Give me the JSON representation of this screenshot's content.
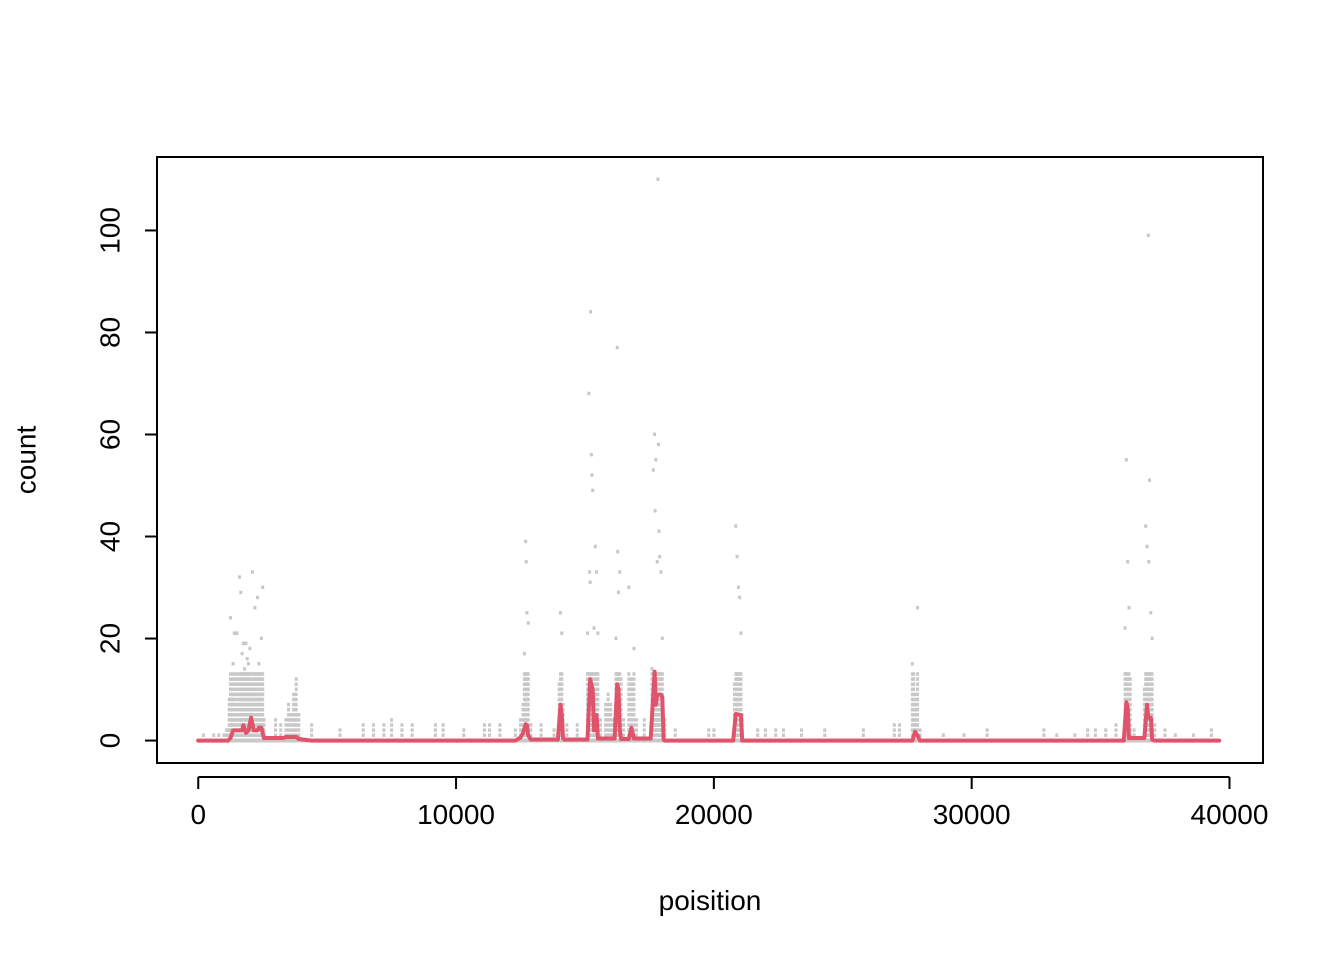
{
  "chart_data": {
    "type": "scatter",
    "xlabel": "poisition",
    "ylabel": "count",
    "xlim": [
      -1600,
      41300
    ],
    "ylim": [
      -4.4,
      114.4
    ],
    "x_ticks": [
      0,
      10000,
      20000,
      30000,
      40000
    ],
    "x_tick_labels": [
      "0",
      "10000",
      "20000",
      "30000",
      "40000"
    ],
    "y_ticks": [
      0,
      20,
      40,
      60,
      80,
      100
    ],
    "y_tick_labels": [
      "0",
      "20",
      "40",
      "60",
      "80",
      "100"
    ],
    "grid": false,
    "colors": {
      "points": "#c8c8c8",
      "line": "#df536b",
      "axes": "#000000"
    },
    "points_x_step": 100,
    "points": [
      [
        200,
        1
      ],
      [
        600,
        1
      ],
      [
        800,
        1
      ],
      [
        1000,
        1
      ],
      [
        1100,
        2
      ],
      [
        1200,
        8
      ],
      [
        1250,
        24
      ],
      [
        1300,
        10
      ],
      [
        1350,
        15
      ],
      [
        1400,
        21
      ],
      [
        1500,
        21
      ],
      [
        1600,
        32
      ],
      [
        1650,
        29
      ],
      [
        1700,
        17
      ],
      [
        1750,
        19
      ],
      [
        1800,
        14
      ],
      [
        1850,
        19
      ],
      [
        1900,
        16
      ],
      [
        1950,
        15
      ],
      [
        2000,
        18
      ],
      [
        2050,
        11
      ],
      [
        2100,
        33
      ],
      [
        2150,
        13
      ],
      [
        2200,
        26
      ],
      [
        2250,
        13
      ],
      [
        2300,
        28
      ],
      [
        2350,
        15
      ],
      [
        2400,
        13
      ],
      [
        2450,
        20
      ],
      [
        2500,
        30
      ],
      [
        2550,
        4
      ],
      [
        3000,
        4
      ],
      [
        3200,
        3
      ],
      [
        3400,
        4
      ],
      [
        3500,
        7
      ],
      [
        3600,
        5
      ],
      [
        3700,
        9
      ],
      [
        3750,
        7
      ],
      [
        3800,
        12
      ],
      [
        3900,
        5
      ],
      [
        4400,
        3
      ],
      [
        5500,
        2
      ],
      [
        6400,
        3
      ],
      [
        6800,
        3
      ],
      [
        7200,
        3
      ],
      [
        7500,
        4
      ],
      [
        7900,
        3
      ],
      [
        8300,
        3
      ],
      [
        9200,
        3
      ],
      [
        9500,
        3
      ],
      [
        10300,
        2
      ],
      [
        11100,
        3
      ],
      [
        11300,
        3
      ],
      [
        11700,
        3
      ],
      [
        12300,
        2
      ],
      [
        12500,
        4
      ],
      [
        12600,
        7
      ],
      [
        12650,
        17
      ],
      [
        12700,
        39
      ],
      [
        12720,
        35
      ],
      [
        12750,
        25
      ],
      [
        12800,
        23
      ],
      [
        12900,
        3
      ],
      [
        13300,
        3
      ],
      [
        13800,
        2
      ],
      [
        14000,
        11
      ],
      [
        14050,
        25
      ],
      [
        14100,
        21
      ],
      [
        14150,
        7
      ],
      [
        14300,
        3
      ],
      [
        14700,
        3
      ],
      [
        15100,
        21
      ],
      [
        15150,
        68
      ],
      [
        15180,
        33
      ],
      [
        15200,
        31
      ],
      [
        15220,
        84
      ],
      [
        15250,
        56
      ],
      [
        15270,
        52
      ],
      [
        15300,
        49
      ],
      [
        15350,
        22
      ],
      [
        15400,
        38
      ],
      [
        15450,
        33
      ],
      [
        15500,
        21
      ],
      [
        15600,
        4
      ],
      [
        15800,
        7
      ],
      [
        15900,
        9
      ],
      [
        16000,
        7
      ],
      [
        16100,
        4
      ],
      [
        16200,
        20
      ],
      [
        16250,
        77
      ],
      [
        16270,
        37
      ],
      [
        16300,
        29
      ],
      [
        16350,
        33
      ],
      [
        16400,
        12
      ],
      [
        16500,
        4
      ],
      [
        16700,
        30
      ],
      [
        16800,
        12
      ],
      [
        16900,
        18
      ],
      [
        17000,
        4
      ],
      [
        17300,
        4
      ],
      [
        17600,
        14
      ],
      [
        17650,
        53
      ],
      [
        17700,
        60
      ],
      [
        17720,
        45
      ],
      [
        17750,
        55
      ],
      [
        17800,
        35
      ],
      [
        17830,
        110
      ],
      [
        17850,
        58
      ],
      [
        17870,
        41
      ],
      [
        17900,
        36
      ],
      [
        17950,
        33
      ],
      [
        18000,
        20
      ],
      [
        18100,
        4
      ],
      [
        18500,
        2
      ],
      [
        19800,
        2
      ],
      [
        20000,
        2
      ],
      [
        20800,
        11
      ],
      [
        20850,
        42
      ],
      [
        20900,
        36
      ],
      [
        20950,
        30
      ],
      [
        21000,
        28
      ],
      [
        21050,
        21
      ],
      [
        21100,
        5
      ],
      [
        21700,
        2
      ],
      [
        22000,
        2
      ],
      [
        22400,
        2
      ],
      [
        22700,
        2
      ],
      [
        23400,
        2
      ],
      [
        24300,
        2
      ],
      [
        25800,
        2
      ],
      [
        27000,
        3
      ],
      [
        27200,
        3
      ],
      [
        27700,
        15
      ],
      [
        27750,
        13
      ],
      [
        27800,
        7
      ],
      [
        27850,
        9
      ],
      [
        27900,
        26
      ],
      [
        28000,
        2
      ],
      [
        28900,
        1
      ],
      [
        29700,
        1
      ],
      [
        30600,
        2
      ],
      [
        32800,
        2
      ],
      [
        33300,
        1
      ],
      [
        34000,
        1
      ],
      [
        34500,
        2
      ],
      [
        34800,
        2
      ],
      [
        35200,
        2
      ],
      [
        35600,
        3
      ],
      [
        35950,
        22
      ],
      [
        36000,
        55
      ],
      [
        36050,
        35
      ],
      [
        36100,
        26
      ],
      [
        36150,
        12
      ],
      [
        36300,
        2
      ],
      [
        36700,
        10
      ],
      [
        36750,
        42
      ],
      [
        36800,
        38
      ],
      [
        36850,
        99
      ],
      [
        36870,
        35
      ],
      [
        36900,
        51
      ],
      [
        36950,
        25
      ],
      [
        37000,
        20
      ],
      [
        37100,
        3
      ],
      [
        37500,
        2
      ],
      [
        37900,
        1
      ],
      [
        38600,
        1
      ],
      [
        39300,
        2
      ]
    ],
    "series": [
      {
        "values": [
          [
            0,
            0
          ],
          [
            1150,
            0
          ],
          [
            1250,
            0.5
          ],
          [
            1350,
            2
          ],
          [
            1700,
            2
          ],
          [
            1750,
            3
          ],
          [
            1850,
            1.5
          ],
          [
            1950,
            2
          ],
          [
            2050,
            4.5
          ],
          [
            2150,
            2
          ],
          [
            2300,
            2
          ],
          [
            2350,
            2.5
          ],
          [
            2450,
            2.5
          ],
          [
            2550,
            0.5
          ],
          [
            3300,
            0.5
          ],
          [
            3400,
            0.7
          ],
          [
            3800,
            0.7
          ],
          [
            3900,
            0.3
          ],
          [
            4400,
            0
          ],
          [
            12300,
            0
          ],
          [
            12500,
            0.6
          ],
          [
            12600,
            1.5
          ],
          [
            12700,
            3.2
          ],
          [
            12750,
            3
          ],
          [
            12800,
            1
          ],
          [
            12900,
            0.2
          ],
          [
            13950,
            0.2
          ],
          [
            14050,
            7
          ],
          [
            14100,
            5
          ],
          [
            14150,
            0.5
          ],
          [
            14200,
            0.2
          ],
          [
            15100,
            0.2
          ],
          [
            15200,
            12
          ],
          [
            15300,
            10
          ],
          [
            15350,
            2
          ],
          [
            15400,
            4.5
          ],
          [
            15450,
            5
          ],
          [
            15500,
            0.4
          ],
          [
            16150,
            0.4
          ],
          [
            16250,
            11
          ],
          [
            16300,
            10
          ],
          [
            16350,
            2
          ],
          [
            16400,
            0.3
          ],
          [
            16700,
            0.3
          ],
          [
            16800,
            2.5
          ],
          [
            16900,
            0.4
          ],
          [
            17550,
            0.4
          ],
          [
            17700,
            13.5
          ],
          [
            17750,
            7
          ],
          [
            17800,
            9
          ],
          [
            17950,
            9
          ],
          [
            18000,
            8.5
          ],
          [
            18050,
            0.2
          ],
          [
            18100,
            0
          ],
          [
            20750,
            0
          ],
          [
            20850,
            5.2
          ],
          [
            21050,
            5
          ],
          [
            21100,
            0
          ],
          [
            27700,
            0
          ],
          [
            27800,
            1.7
          ],
          [
            27900,
            1
          ],
          [
            28000,
            0
          ],
          [
            35900,
            0
          ],
          [
            36000,
            7.5
          ],
          [
            36050,
            6.5
          ],
          [
            36100,
            0.5
          ],
          [
            36700,
            0.5
          ],
          [
            36800,
            7
          ],
          [
            36850,
            4.5
          ],
          [
            36950,
            4.5
          ],
          [
            37000,
            0.2
          ],
          [
            37100,
            0
          ],
          [
            39600,
            0
          ]
        ]
      }
    ]
  }
}
